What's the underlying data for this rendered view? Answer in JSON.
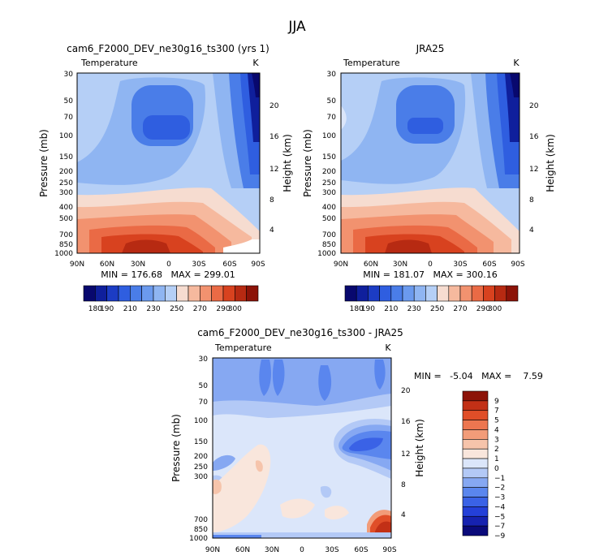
{
  "figure_title": "JJA",
  "chart_data": [
    {
      "type": "heatmap",
      "title": "cam6_F2000_DEV_ne30g16_ts300 (yrs 1)",
      "subtitle": "Temperature",
      "units": "K",
      "ylabel": "Pressure (mb)",
      "ylabel_right": "Height (km)",
      "x_ticks": [
        "90N",
        "60N",
        "30N",
        "0",
        "30S",
        "60S",
        "90S"
      ],
      "y_ticks": [
        "30",
        "50",
        "70",
        "100",
        "150",
        "200",
        "250",
        "300",
        "400",
        "500",
        "700",
        "850",
        "1000"
      ],
      "y_ticks_right": [
        "20",
        "16",
        "12",
        "8",
        "4"
      ],
      "ylim": [
        1000,
        30
      ],
      "xlim": [
        90,
        -90
      ],
      "min_max_label": "MIN = 176.68   MAX = 299.01",
      "min": 176.68,
      "max": 299.01,
      "colorbar": {
        "orientation": "horizontal",
        "levels": [
          180,
          190,
          200,
          210,
          220,
          230,
          240,
          250,
          260,
          270,
          280,
          290,
          300
        ],
        "tick_labels": [
          "180",
          "190",
          "210",
          "230",
          "250",
          "270",
          "290",
          "300"
        ]
      }
    },
    {
      "type": "heatmap",
      "title": "JRA25",
      "subtitle": "Temperature",
      "units": "K",
      "ylabel": "Pressure (mb)",
      "ylabel_right": "Height (km)",
      "x_ticks": [
        "90N",
        "60N",
        "30N",
        "0",
        "30S",
        "60S",
        "90S"
      ],
      "y_ticks": [
        "30",
        "50",
        "70",
        "100",
        "150",
        "200",
        "250",
        "300",
        "400",
        "500",
        "700",
        "850",
        "1000"
      ],
      "y_ticks_right": [
        "20",
        "16",
        "12",
        "8",
        "4"
      ],
      "ylim": [
        1000,
        30
      ],
      "xlim": [
        90,
        -90
      ],
      "min_max_label": "MIN = 181.07   MAX = 300.16",
      "min": 181.07,
      "max": 300.16,
      "colorbar": {
        "orientation": "horizontal",
        "levels": [
          180,
          190,
          200,
          210,
          220,
          230,
          240,
          250,
          260,
          270,
          280,
          290,
          300
        ],
        "tick_labels": [
          "180",
          "190",
          "210",
          "230",
          "250",
          "270",
          "290",
          "300"
        ]
      }
    },
    {
      "type": "heatmap",
      "title": "cam6_F2000_DEV_ne30g16_ts300 - JRA25",
      "subtitle": "Temperature",
      "units": "K",
      "ylabel": "Pressure (mb)",
      "ylabel_right": "Height (km)",
      "x_ticks": [
        "90N",
        "60N",
        "30N",
        "0",
        "30S",
        "60S",
        "90S"
      ],
      "y_ticks": [
        "30",
        "50",
        "70",
        "100",
        "150",
        "200",
        "250",
        "300",
        "700",
        "850",
        "1000"
      ],
      "y_ticks_right": [
        "20",
        "16",
        "12",
        "8",
        "4"
      ],
      "ylim": [
        1000,
        30
      ],
      "xlim": [
        90,
        -90
      ],
      "min_max_label": "MIN =   -5.04   MAX =    7.59",
      "min": -5.04,
      "max": 7.59,
      "colorbar": {
        "orientation": "vertical",
        "levels": [
          -9,
          -7,
          -5,
          -4,
          -3,
          -2,
          -1,
          0,
          1,
          2,
          3,
          4,
          5,
          7,
          9
        ],
        "tick_labels": [
          "9",
          "7",
          "5",
          "4",
          "3",
          "2",
          "1",
          "0",
          "-1",
          "-2",
          "-3",
          "-4",
          "-5",
          "-7",
          "-9"
        ]
      }
    }
  ],
  "colors": {
    "abs_palette": [
      "#08086e",
      "#0f1f9c",
      "#1c3cc4",
      "#2f5ee0",
      "#4a7de8",
      "#6b9aee",
      "#8fb5f2",
      "#b5cff6",
      "#f6dcd0",
      "#f6b99e",
      "#f2926f",
      "#ea6a45",
      "#d8421f",
      "#b72a12",
      "#8c1308"
    ],
    "diff_palette": [
      "#0a0a7a",
      "#1622b0",
      "#2440d8",
      "#3a62e6",
      "#5a86ee",
      "#86a8f2",
      "#b3c9f6",
      "#dbe6fa",
      "#f9e6dc",
      "#f6c4ab",
      "#f29c79",
      "#ec7650",
      "#e04e28",
      "#c23016",
      "#8c1308"
    ]
  }
}
